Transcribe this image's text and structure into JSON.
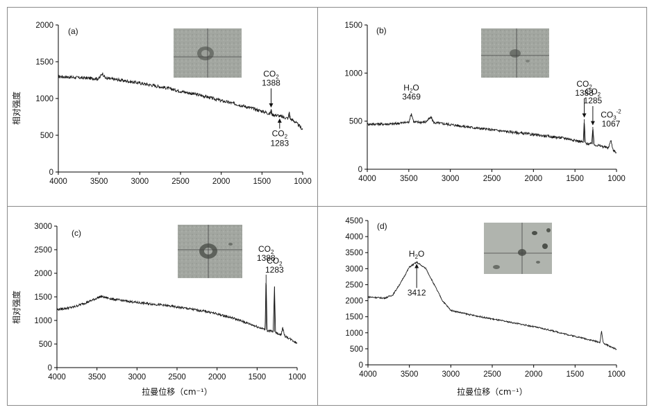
{
  "chart_data": [
    {
      "id": "a",
      "type": "line",
      "panel_label": "(a)",
      "ylabel": "相对强度",
      "xlabel": "",
      "xlim": [
        4000,
        1000
      ],
      "ylim": [
        0,
        2000
      ],
      "xticks": [
        4000,
        3500,
        3000,
        2500,
        2000,
        1500,
        1000
      ],
      "yticks": [
        0,
        500,
        1000,
        1500,
        2000
      ],
      "series": [
        {
          "name": "spectrum",
          "noise": 22,
          "x": [
            4000,
            3700,
            3500,
            3460,
            3420,
            3300,
            3000,
            2700,
            2500,
            2200,
            2000,
            1800,
            1600,
            1450,
            1400,
            1388,
            1375,
            1300,
            1283,
            1270,
            1220,
            1180,
            1165,
            1150,
            1100,
            1000
          ],
          "values": [
            1300,
            1280,
            1270,
            1345,
            1275,
            1260,
            1210,
            1150,
            1100,
            1030,
            970,
            920,
            860,
            810,
            790,
            855,
            780,
            770,
            760,
            755,
            740,
            730,
            820,
            720,
            690,
            580
          ]
        }
      ],
      "annotations": [
        {
          "species": "CO",
          "sub": "2",
          "wavenumber": "1388",
          "x": 1388,
          "y": 855,
          "arrow": "down",
          "pos": "above"
        },
        {
          "species": "CO",
          "sub": "2",
          "wavenumber": "1283",
          "x": 1283,
          "y": 760,
          "arrow": "up",
          "pos": "below"
        }
      ]
    },
    {
      "id": "b",
      "type": "line",
      "panel_label": "(b)",
      "ylabel": "",
      "xlabel": "",
      "xlim": [
        4000,
        1000
      ],
      "ylim": [
        0,
        1500
      ],
      "xticks": [
        4000,
        3500,
        3000,
        2500,
        2000,
        1500,
        1000
      ],
      "yticks": [
        0,
        500,
        1000,
        1500
      ],
      "series": [
        {
          "name": "spectrum",
          "noise": 14,
          "x": [
            4000,
            3700,
            3500,
            3469,
            3440,
            3300,
            3230,
            3200,
            3000,
            2700,
            2400,
            2100,
            1800,
            1600,
            1420,
            1400,
            1388,
            1375,
            1300,
            1285,
            1270,
            1200,
            1100,
            1067,
            1040,
            1000
          ],
          "values": [
            470,
            470,
            490,
            580,
            490,
            490,
            540,
            485,
            465,
            430,
            400,
            370,
            340,
            320,
            285,
            280,
            520,
            270,
            260,
            440,
            255,
            245,
            220,
            300,
            200,
            170
          ]
        }
      ],
      "annotations": [
        {
          "species": "H",
          "sub": "2",
          "post": "O",
          "wavenumber": "3469",
          "x": 3469,
          "y": 580,
          "arrow": "none",
          "pos": "above"
        },
        {
          "species": "CO",
          "sub": "2",
          "wavenumber": "1388",
          "x": 1388,
          "y": 520,
          "arrow": "down",
          "pos": "above"
        },
        {
          "species": "CO",
          "sub": "2",
          "wavenumber": "1285",
          "x": 1285,
          "y": 440,
          "arrow": "down",
          "pos": "above"
        },
        {
          "species": "CO",
          "sub": "3",
          "sup": "-2",
          "wavenumber": "1067",
          "x": 1067,
          "y": 300,
          "arrow": "none",
          "pos": "above"
        }
      ]
    },
    {
      "id": "c",
      "type": "line",
      "panel_label": "(c)",
      "ylabel": "相对强度",
      "xlabel": "拉曼位移（cm⁻¹）",
      "xlim": [
        4000,
        1000
      ],
      "ylim": [
        0,
        3000
      ],
      "xticks": [
        4000,
        3500,
        3000,
        2500,
        2000,
        1500,
        1000
      ],
      "yticks": [
        0,
        500,
        1000,
        1500,
        2000,
        2500,
        3000
      ],
      "series": [
        {
          "name": "spectrum",
          "noise": 25,
          "x": [
            4000,
            3800,
            3600,
            3450,
            3300,
            3000,
            2700,
            2400,
            2100,
            1800,
            1600,
            1420,
            1400,
            1388,
            1375,
            1300,
            1283,
            1270,
            1200,
            1180,
            1160,
            1100,
            1000
          ],
          "values": [
            1230,
            1280,
            1400,
            1510,
            1450,
            1380,
            1330,
            1260,
            1180,
            1050,
            930,
            820,
            800,
            1970,
            790,
            760,
            1720,
            740,
            700,
            850,
            680,
            620,
            520
          ]
        }
      ],
      "annotations": [
        {
          "species": "CO",
          "sub": "2",
          "wavenumber": "1388",
          "x": 1388,
          "y": 1970,
          "arrow": "none",
          "pos": "above"
        },
        {
          "species": "CO",
          "sub": "2",
          "wavenumber": "1283",
          "x": 1283,
          "y": 1720,
          "arrow": "none",
          "pos": "above"
        }
      ]
    },
    {
      "id": "d",
      "type": "line",
      "panel_label": "(d)",
      "ylabel": "",
      "xlabel": "拉曼位移（cm⁻¹）",
      "xlim": [
        4000,
        1000
      ],
      "ylim": [
        0,
        4500
      ],
      "xticks": [
        4000,
        3500,
        3000,
        2500,
        2000,
        1500,
        1000
      ],
      "yticks": [
        0,
        500,
        1000,
        1500,
        2000,
        2500,
        3000,
        3500,
        4000,
        4500
      ],
      "series": [
        {
          "name": "spectrum",
          "noise": 22,
          "x": [
            4000,
            3800,
            3700,
            3600,
            3500,
            3412,
            3300,
            3200,
            3100,
            3000,
            2800,
            2500,
            2200,
            2000,
            1800,
            1600,
            1400,
            1200,
            1180,
            1160,
            1100,
            1000
          ],
          "values": [
            2120,
            2080,
            2180,
            2580,
            3050,
            3200,
            3000,
            2500,
            2000,
            1700,
            1580,
            1430,
            1290,
            1190,
            1080,
            950,
            830,
            700,
            1050,
            680,
            600,
            480
          ]
        }
      ],
      "annotations": [
        {
          "species": "H",
          "sub": "2",
          "post": "O",
          "wavenumber": "3412",
          "x": 3412,
          "y": 3200,
          "arrow": "up",
          "pos": "split"
        }
      ]
    }
  ],
  "images": [
    {
      "panel": "a",
      "description": "fluid inclusion micrograph"
    },
    {
      "panel": "b",
      "description": "fluid inclusion micrograph"
    },
    {
      "panel": "c",
      "description": "fluid inclusion micrograph"
    },
    {
      "panel": "d",
      "description": "fluid inclusion micrograph"
    }
  ]
}
